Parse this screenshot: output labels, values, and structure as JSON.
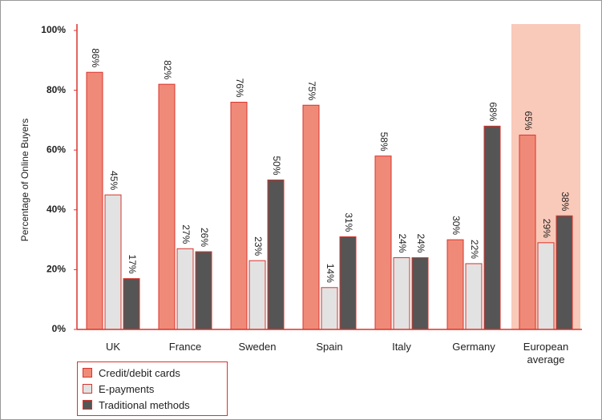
{
  "chart_data": {
    "type": "bar",
    "y_label": "Percentage of Online Buyers",
    "categories": [
      "UK",
      "France",
      "Sweden",
      "Spain",
      "Italy",
      "Germany",
      "European average"
    ],
    "series": [
      {
        "name": "Credit/debit cards",
        "color": "#f08a78",
        "values": [
          86,
          82,
          76,
          75,
          58,
          30,
          65
        ],
        "value_labels": [
          "86%",
          "82%",
          "76%",
          "75%",
          "58%",
          "30%",
          "65%"
        ]
      },
      {
        "name": "E-payments",
        "color": "#e2e2e2",
        "values": [
          45,
          27,
          23,
          14,
          24,
          22,
          29
        ],
        "value_labels": [
          "45%",
          "27%",
          "23%",
          "14%",
          "24%",
          "22%",
          "29%"
        ]
      },
      {
        "name": "Traditional methods",
        "color": "#555555",
        "values": [
          17,
          26,
          50,
          31,
          24,
          68,
          38
        ],
        "value_labels": [
          "17%",
          "26%",
          "50%",
          "31%",
          "24%",
          "68%",
          "38%"
        ]
      }
    ],
    "outline_color": "#d9342b",
    "highlight": {
      "category": 6,
      "color": "#f9c9b9"
    },
    "ylim": [
      0,
      100
    ],
    "yticks": [
      {
        "value": 0,
        "label": "0%"
      },
      {
        "value": 20,
        "label": "20%"
      },
      {
        "value": 40,
        "label": "40%"
      },
      {
        "value": 60,
        "label": "60%"
      },
      {
        "value": 80,
        "label": "80%"
      },
      {
        "value": 100,
        "label": "100%"
      }
    ],
    "grid": false
  }
}
